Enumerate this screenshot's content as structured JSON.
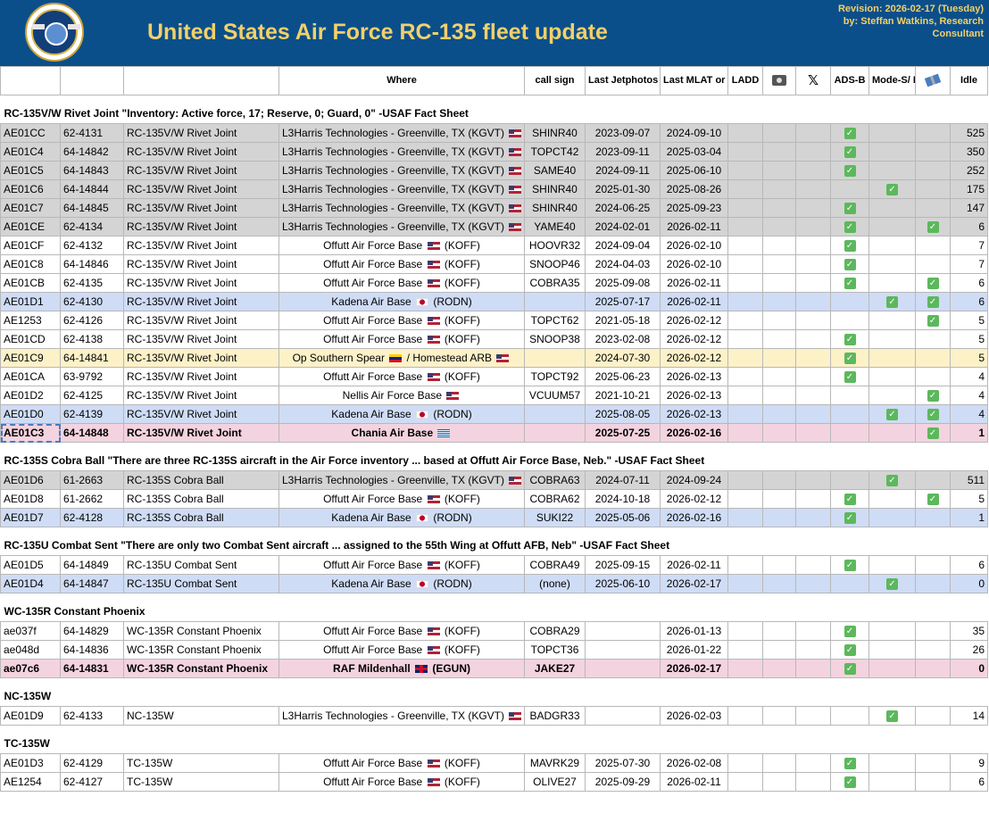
{
  "header": {
    "title": "United States Air Force RC-135 fleet update",
    "revision_line1": "Revision: 2026-02-17 (Tuesday)",
    "revision_line2": "by: Steffan Watkins, Research Consultant",
    "logo_icon": "usaf-seal-icon"
  },
  "columns": [
    "",
    "",
    "",
    "Where",
    "call sign",
    "Last Jetphotos",
    "Last MLAT or ADS-B",
    "LADD",
    "",
    "",
    "ADS-B",
    "Mode-S/ MLAT",
    "",
    "Idle"
  ],
  "column_icons": {
    "8": "camera-icon",
    "9": "x-logo-icon",
    "12": "satellite-icon"
  },
  "sections": [
    {
      "title": "RC-135V/W Rivet Joint \"Inventory: Active force, 17; Reserve, 0; Guard, 0\" -USAF Fact Sheet",
      "rows": [
        {
          "hex": "AE01CC",
          "serial": "62-4131",
          "type": "RC-135V/W Rivet Joint",
          "where": "L3Harris Technologies - Greenville, TX (KGVT)",
          "flag": "us",
          "flag2": "",
          "align": "left",
          "call": "SHINR40",
          "jet": "2023-09-07",
          "mlat": "2024-09-10",
          "adsb": true,
          "modes": false,
          "sat": false,
          "idle": "525",
          "style": "g"
        },
        {
          "hex": "AE01C4",
          "serial": "64-14842",
          "type": "RC-135V/W Rivet Joint",
          "where": "L3Harris Technologies - Greenville, TX (KGVT)",
          "flag": "us",
          "flag2": "",
          "align": "left",
          "call": "TOPCT42",
          "jet": "2023-09-11",
          "mlat": "2025-03-04",
          "adsb": true,
          "modes": false,
          "sat": false,
          "idle": "350",
          "style": "g"
        },
        {
          "hex": "AE01C5",
          "serial": "64-14843",
          "type": "RC-135V/W Rivet Joint",
          "where": "L3Harris Technologies - Greenville, TX (KGVT)",
          "flag": "us",
          "flag2": "",
          "align": "left",
          "call": "SAME40",
          "jet": "2024-09-11",
          "mlat": "2025-06-10",
          "adsb": true,
          "modes": false,
          "sat": false,
          "idle": "252",
          "style": "g"
        },
        {
          "hex": "AE01C6",
          "serial": "64-14844",
          "type": "RC-135V/W Rivet Joint",
          "where": "L3Harris Technologies - Greenville, TX (KGVT)",
          "flag": "us",
          "flag2": "",
          "align": "left",
          "call": "SHINR40",
          "jet": "2025-01-30",
          "mlat": "2025-08-26",
          "adsb": false,
          "modes": true,
          "sat": false,
          "idle": "175",
          "style": "g"
        },
        {
          "hex": "AE01C7",
          "serial": "64-14845",
          "type": "RC-135V/W Rivet Joint",
          "where": "L3Harris Technologies - Greenville, TX (KGVT)",
          "flag": "us",
          "flag2": "",
          "align": "left",
          "call": "SHINR40",
          "jet": "2024-06-25",
          "mlat": "2025-09-23",
          "adsb": true,
          "modes": false,
          "sat": false,
          "idle": "147",
          "style": "g"
        },
        {
          "hex": "AE01CE",
          "serial": "62-4134",
          "type": "RC-135V/W Rivet Joint",
          "where": "L3Harris Technologies - Greenville, TX (KGVT)",
          "flag": "us",
          "flag2": "",
          "align": "left",
          "call": "YAME40",
          "jet": "2024-02-01",
          "mlat": "2026-02-11",
          "adsb": true,
          "modes": false,
          "sat": true,
          "idle": "6",
          "style": "g"
        },
        {
          "hex": "AE01CF",
          "serial": "62-4132",
          "type": "RC-135V/W Rivet Joint",
          "where": "Offutt Air Force Base",
          "flag": "us",
          "flag2": "",
          "suffix": "(KOFF)",
          "align": "center",
          "call": "HOOVR32",
          "jet": "2024-09-04",
          "mlat": "2026-02-10",
          "adsb": true,
          "modes": false,
          "sat": false,
          "idle": "7",
          "style": ""
        },
        {
          "hex": "AE01C8",
          "serial": "64-14846",
          "type": "RC-135V/W Rivet Joint",
          "where": "Offutt Air Force Base",
          "flag": "us",
          "flag2": "",
          "suffix": "(KOFF)",
          "align": "center",
          "call": "SNOOP46",
          "jet": "2024-04-03",
          "mlat": "2026-02-10",
          "adsb": true,
          "modes": false,
          "sat": false,
          "idle": "7",
          "style": ""
        },
        {
          "hex": "AE01CB",
          "serial": "62-4135",
          "type": "RC-135V/W Rivet Joint",
          "where": "Offutt Air Force Base",
          "flag": "us",
          "flag2": "",
          "suffix": "(KOFF)",
          "align": "center",
          "call": "COBRA35",
          "jet": "2025-09-08",
          "mlat": "2026-02-11",
          "adsb": true,
          "modes": false,
          "sat": true,
          "idle": "6",
          "style": ""
        },
        {
          "hex": "AE01D1",
          "serial": "62-4130",
          "type": "RC-135V/W Rivet Joint",
          "where": "Kadena Air Base",
          "flag": "jp",
          "flag2": "",
          "suffix": "(RODN)",
          "align": "center",
          "call": "",
          "jet": "2025-07-17",
          "mlat": "2026-02-11",
          "adsb": false,
          "modes": true,
          "sat": true,
          "idle": "6",
          "style": "b"
        },
        {
          "hex": "AE1253",
          "serial": "62-4126",
          "type": "RC-135V/W Rivet Joint",
          "where": "Offutt Air Force Base",
          "flag": "us",
          "flag2": "",
          "suffix": "(KOFF)",
          "align": "center",
          "call": "TOPCT62",
          "jet": "2021-05-18",
          "mlat": "2026-02-12",
          "adsb": false,
          "modes": false,
          "sat": true,
          "idle": "5",
          "style": ""
        },
        {
          "hex": "AE01CD",
          "serial": "62-4138",
          "type": "RC-135V/W Rivet Joint",
          "where": "Offutt Air Force Base",
          "flag": "us",
          "flag2": "",
          "suffix": "(KOFF)",
          "align": "center",
          "call": "SNOOP38",
          "jet": "2023-02-08",
          "mlat": "2026-02-12",
          "adsb": true,
          "modes": false,
          "sat": false,
          "idle": "5",
          "style": ""
        },
        {
          "hex": "AE01C9",
          "serial": "64-14841",
          "type": "RC-135V/W Rivet Joint",
          "where": "Op Southern Spear",
          "flag": "ve",
          "where2": "/ Homestead ARB",
          "flag2": "us",
          "align": "center",
          "call": "",
          "jet": "2024-07-30",
          "mlat": "2026-02-12",
          "adsb": true,
          "modes": false,
          "sat": false,
          "idle": "5",
          "style": "y"
        },
        {
          "hex": "AE01CA",
          "serial": "63-9792",
          "type": "RC-135V/W Rivet Joint",
          "where": "Offutt Air Force Base",
          "flag": "us",
          "flag2": "",
          "suffix": "(KOFF)",
          "align": "center",
          "call": "TOPCT92",
          "jet": "2025-06-23",
          "mlat": "2026-02-13",
          "adsb": true,
          "modes": false,
          "sat": false,
          "idle": "4",
          "style": ""
        },
        {
          "hex": "AE01D2",
          "serial": "62-4125",
          "type": "RC-135V/W Rivet Joint",
          "where": "Nellis Air Force Base",
          "flag": "us",
          "flag2": "",
          "align": "center",
          "call": "VCUUM57",
          "jet": "2021-10-21",
          "mlat": "2026-02-13",
          "adsb": false,
          "modes": false,
          "sat": true,
          "idle": "4",
          "style": ""
        },
        {
          "hex": "AE01D0",
          "serial": "62-4139",
          "type": "RC-135V/W Rivet Joint",
          "where": "Kadena Air Base",
          "flag": "jp",
          "flag2": "",
          "suffix": "(RODN)",
          "align": "center",
          "call": "",
          "jet": "2025-08-05",
          "mlat": "2026-02-13",
          "adsb": false,
          "modes": true,
          "sat": true,
          "idle": "4",
          "style": "b"
        },
        {
          "hex": "AE01C3",
          "serial": "64-14848",
          "type": "RC-135V/W Rivet Joint",
          "where": "Chania Air Base",
          "flag": "gr",
          "flag2": "",
          "align": "center",
          "call": "",
          "jet": "2025-07-25",
          "mlat": "2026-02-16",
          "adsb": false,
          "modes": false,
          "sat": true,
          "idle": "1",
          "style": "p",
          "bold": true,
          "selected": true
        }
      ]
    },
    {
      "title": "RC-135S Cobra Ball \"There are three RC-135S aircraft in the Air Force inventory ... based at Offutt Air Force Base, Neb.\"  -USAF Fact Sheet",
      "rows": [
        {
          "hex": "AE01D6",
          "serial": "61-2663",
          "type": "RC-135S Cobra Ball",
          "where": "L3Harris Technologies - Greenville, TX (KGVT)",
          "flag": "us",
          "flag2": "",
          "align": "left",
          "call": "COBRA63",
          "jet": "2024-07-11",
          "mlat": "2024-09-24",
          "adsb": false,
          "modes": true,
          "sat": false,
          "idle": "511",
          "style": "g"
        },
        {
          "hex": "AE01D8",
          "serial": "61-2662",
          "type": "RC-135S Cobra Ball",
          "where": "Offutt Air Force Base",
          "flag": "us",
          "flag2": "",
          "suffix": "(KOFF)",
          "align": "center",
          "call": "COBRA62",
          "jet": "2024-10-18",
          "mlat": "2026-02-12",
          "adsb": true,
          "modes": false,
          "sat": true,
          "idle": "5",
          "style": ""
        },
        {
          "hex": "AE01D7",
          "serial": "62-4128",
          "type": "RC-135S Cobra Ball",
          "where": "Kadena Air Base",
          "flag": "jp",
          "flag2": "",
          "suffix": "(RODN)",
          "align": "center",
          "call": "SUKI22",
          "jet": "2025-05-06",
          "mlat": "2026-02-16",
          "adsb": true,
          "modes": false,
          "sat": false,
          "idle": "1",
          "style": "b"
        }
      ]
    },
    {
      "title": "RC-135U Combat Sent \"There are only two Combat Sent aircraft ... assigned to the 55th Wing at Offutt AFB, Neb\"  -USAF Fact Sheet",
      "rows": [
        {
          "hex": "AE01D5",
          "serial": "64-14849",
          "type": "RC-135U Combat Sent",
          "where": "Offutt Air Force Base",
          "flag": "us",
          "flag2": "",
          "suffix": "(KOFF)",
          "align": "center",
          "call": "COBRA49",
          "jet": "2025-09-15",
          "mlat": "2026-02-11",
          "adsb": true,
          "modes": false,
          "sat": false,
          "idle": "6",
          "style": ""
        },
        {
          "hex": "AE01D4",
          "serial": "64-14847",
          "type": "RC-135U Combat Sent",
          "where": "Kadena Air Base",
          "flag": "jp",
          "flag2": "",
          "suffix": "(RODN)",
          "align": "center",
          "call": "(none)",
          "jet": "2025-06-10",
          "mlat": "2026-02-17",
          "adsb": false,
          "modes": true,
          "sat": false,
          "idle": "0",
          "style": "b"
        }
      ]
    },
    {
      "title": "WC-135R Constant Phoenix",
      "rows": [
        {
          "hex": "ae037f",
          "serial": "64-14829",
          "type": "WC-135R Constant Phoenix",
          "where": "Offutt Air Force Base",
          "flag": "us",
          "flag2": "",
          "suffix": "(KOFF)",
          "align": "center",
          "call": "COBRA29",
          "jet": "",
          "mlat": "2026-01-13",
          "adsb": true,
          "modes": false,
          "sat": false,
          "idle": "35",
          "style": ""
        },
        {
          "hex": "ae048d",
          "serial": "64-14836",
          "type": "WC-135R Constant Phoenix",
          "where": "Offutt Air Force Base",
          "flag": "us",
          "flag2": "",
          "suffix": "(KOFF)",
          "align": "center",
          "call": "TOPCT36",
          "jet": "",
          "mlat": "2026-01-22",
          "adsb": true,
          "modes": false,
          "sat": false,
          "idle": "26",
          "style": ""
        },
        {
          "hex": "ae07c6",
          "serial": "64-14831",
          "type": "WC-135R Constant Phoenix",
          "where": "RAF Mildenhall",
          "flag": "uk",
          "flag2": "",
          "suffix": "(EGUN)",
          "align": "center",
          "call": "JAKE27",
          "jet": "",
          "mlat": "2026-02-17",
          "adsb": true,
          "modes": false,
          "sat": false,
          "idle": "0",
          "style": "p",
          "bold": true
        }
      ]
    },
    {
      "title": "NC-135W",
      "rows": [
        {
          "hex": "AE01D9",
          "serial": "62-4133",
          "type": "NC-135W",
          "where": "L3Harris Technologies - Greenville, TX (KGVT)",
          "flag": "us",
          "flag2": "",
          "align": "left",
          "call": "BADGR33",
          "jet": "",
          "mlat": "2026-02-03",
          "adsb": false,
          "modes": true,
          "sat": false,
          "idle": "14",
          "style": ""
        }
      ]
    },
    {
      "title": "TC-135W",
      "rows": [
        {
          "hex": "AE01D3",
          "serial": "62-4129",
          "type": "TC-135W",
          "where": "Offutt Air Force Base",
          "flag": "us",
          "flag2": "",
          "suffix": "(KOFF)",
          "align": "center",
          "call": "MAVRK29",
          "jet": "2025-07-30",
          "mlat": "2026-02-08",
          "adsb": true,
          "modes": false,
          "sat": false,
          "idle": "9",
          "style": ""
        },
        {
          "hex": "AE1254",
          "serial": "62-4127",
          "type": "TC-135W",
          "where": "Offutt Air Force Base",
          "flag": "us",
          "flag2": "",
          "suffix": "(KOFF)",
          "align": "center",
          "call": "OLIVE27",
          "jet": "2025-09-29",
          "mlat": "2026-02-11",
          "adsb": true,
          "modes": false,
          "sat": false,
          "idle": "6",
          "style": ""
        }
      ]
    }
  ],
  "colors": {
    "header_bg": "#0b4f8a",
    "title_gold": "#f2d06a",
    "maintenance_grey": "#d4d4d4",
    "pacific_blue": "#cfdcf5",
    "caribbean_yellow": "#fdf1c8",
    "europe_pink": "#f3d3df",
    "check_green": "#5cb85c"
  }
}
